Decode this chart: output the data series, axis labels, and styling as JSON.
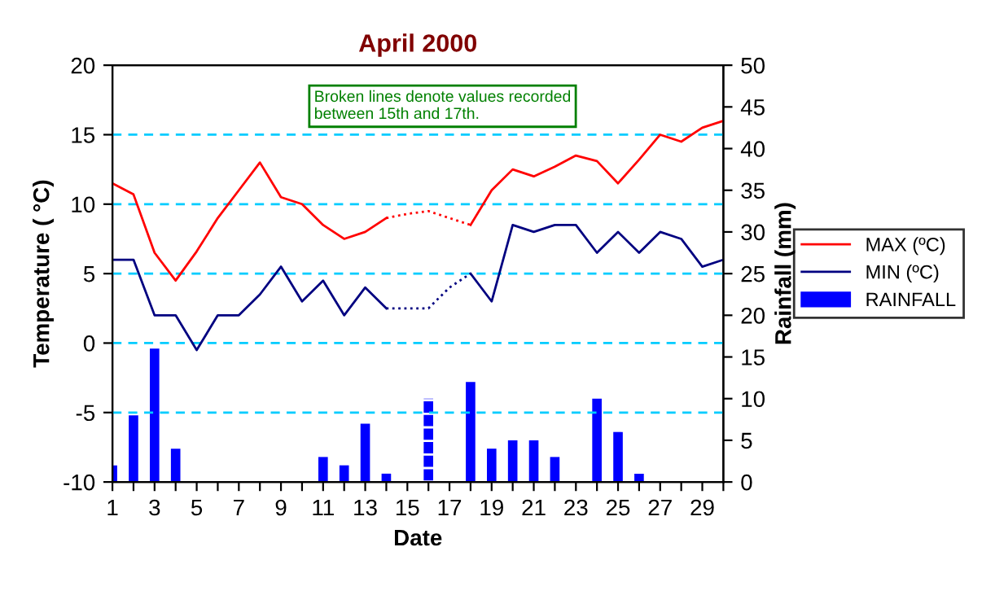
{
  "chart_data": {
    "type": "line",
    "title": "April 2000",
    "xlabel": "Date",
    "ylabel": "Temperature ( °C)",
    "y2label": "Rainfall (mm)",
    "annotations": [
      "Broken lines denote values recorded between 15th and 17th."
    ],
    "x": [
      1,
      2,
      3,
      4,
      5,
      6,
      7,
      8,
      9,
      10,
      11,
      12,
      13,
      14,
      15,
      16,
      17,
      18,
      19,
      20,
      21,
      22,
      23,
      24,
      25,
      26,
      27,
      28,
      29,
      30
    ],
    "series": [
      {
        "name": "MAX (ºC)",
        "color": "#ff0000",
        "line_style": "solid",
        "values": [
          11.5,
          10.7,
          6.5,
          4.5,
          6.6,
          9.0,
          11.0,
          13.0,
          10.5,
          10.0,
          8.5,
          7.5,
          8.0,
          9.0,
          null,
          null,
          null,
          8.5,
          11.0,
          12.5,
          12.0,
          12.7,
          13.5,
          13.1,
          11.5,
          13.2,
          15.0,
          14.5,
          15.5,
          16.0
        ]
      },
      {
        "name": "MIN (ºC)",
        "color": "#000080",
        "line_style": "solid",
        "values": [
          6.0,
          6.0,
          2.0,
          2.0,
          -0.5,
          2.0,
          2.0,
          3.5,
          5.5,
          3.0,
          4.5,
          2.0,
          4.0,
          2.5,
          null,
          null,
          null,
          5.0,
          3.0,
          8.5,
          8.0,
          8.5,
          8.5,
          6.5,
          8.0,
          6.5,
          8.0,
          7.5,
          5.5,
          6.0
        ]
      },
      {
        "color": "#ff0000",
        "line_style": "dotted",
        "values": [
          null,
          null,
          null,
          null,
          null,
          null,
          null,
          null,
          null,
          null,
          null,
          null,
          null,
          9.0,
          9.3,
          9.5,
          9.0,
          8.5,
          null,
          null,
          null,
          null,
          null,
          null,
          null,
          null,
          null,
          null,
          null,
          null
        ]
      },
      {
        "color": "#000080",
        "line_style": "dotted",
        "values": [
          null,
          null,
          null,
          null,
          null,
          null,
          null,
          null,
          null,
          null,
          null,
          null,
          null,
          2.5,
          2.5,
          2.5,
          4.0,
          5.0,
          null,
          null,
          null,
          null,
          null,
          null,
          null,
          null,
          null,
          null,
          null,
          null
        ]
      },
      {
        "name": "RAINFALL",
        "type": "bar",
        "axis": "y2",
        "color": "#0000ff",
        "line_style": "solid",
        "values": [
          2,
          8,
          16,
          4,
          0,
          0,
          0,
          0,
          0,
          0,
          3,
          2,
          7,
          1,
          0,
          null,
          0,
          12,
          4,
          5,
          5,
          3,
          0,
          10,
          6,
          1,
          0,
          0,
          0,
          0
        ]
      },
      {
        "type": "bar",
        "axis": "y2",
        "color": "#0000ff",
        "line_style": "dashed",
        "values": [
          null,
          null,
          null,
          null,
          null,
          null,
          null,
          null,
          null,
          null,
          null,
          null,
          null,
          null,
          null,
          10,
          null,
          null,
          null,
          null,
          null,
          null,
          null,
          null,
          null,
          null,
          null,
          null,
          null,
          null
        ]
      }
    ],
    "xlim": [
      1,
      30
    ],
    "xticks": [
      1,
      {
        "value": 2,
        "label": null
      },
      3,
      {
        "value": 4,
        "label": null
      },
      5,
      {
        "value": 6,
        "label": null
      },
      7,
      {
        "value": 8,
        "label": null
      },
      9,
      {
        "value": 10,
        "label": null
      },
      11,
      {
        "value": 12,
        "label": null
      },
      13,
      {
        "value": 14,
        "label": null
      },
      15,
      {
        "value": 16,
        "label": null
      },
      17,
      {
        "value": 18,
        "label": null
      },
      19,
      {
        "value": 20,
        "label": null
      },
      21,
      {
        "value": 22,
        "label": null
      },
      23,
      {
        "value": 24,
        "label": null
      },
      25,
      {
        "value": 26,
        "label": null
      },
      27,
      {
        "value": 28,
        "label": null
      },
      29,
      {
        "value": 30,
        "label": null
      }
    ],
    "ylim": [
      -10,
      20
    ],
    "yticks": [
      -10,
      -5,
      0,
      5,
      10,
      15,
      20
    ],
    "y2lim": [
      0,
      50
    ],
    "y2ticks": [
      0,
      5,
      10,
      15,
      20,
      25,
      30,
      35,
      40,
      45,
      50
    ],
    "grid": "y",
    "legend": "right"
  }
}
